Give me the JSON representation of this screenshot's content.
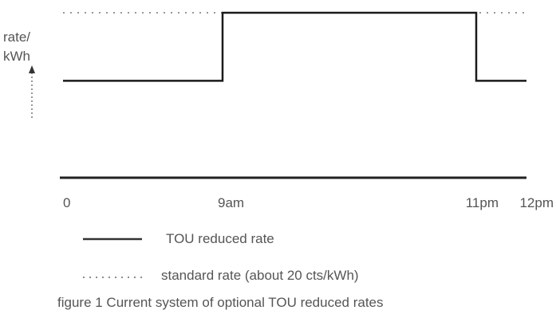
{
  "chart_data": {
    "type": "line",
    "title": "",
    "ylabel_line1": "rate/",
    "ylabel_line2": "kWh",
    "ticks": [
      {
        "x": 0,
        "label": "0"
      },
      {
        "x": 9,
        "label": "9am"
      },
      {
        "x": 23,
        "label": "11pm"
      },
      {
        "x": 24,
        "label": "12pm"
      }
    ],
    "xlim": [
      0,
      24
    ],
    "ylim": [
      0,
      1
    ],
    "series": [
      {
        "name": "TOU reduced rate",
        "style": "solid",
        "points": [
          [
            0,
            0.56
          ],
          [
            9,
            0.56
          ],
          [
            9,
            1.0
          ],
          [
            23,
            1.0
          ],
          [
            23,
            0.56
          ],
          [
            24,
            0.56
          ]
        ]
      },
      {
        "name": "standard rate (about 20 cts/kWh)",
        "style": "dotted",
        "points": [
          [
            0,
            1.0
          ],
          [
            24,
            1.0
          ]
        ]
      }
    ],
    "caption": "figure 1 Current system of optional TOU reduced rates",
    "colors": {
      "solid": "#1a1a1a",
      "dotted": "#777777",
      "text": "#555555"
    },
    "grid": false
  }
}
